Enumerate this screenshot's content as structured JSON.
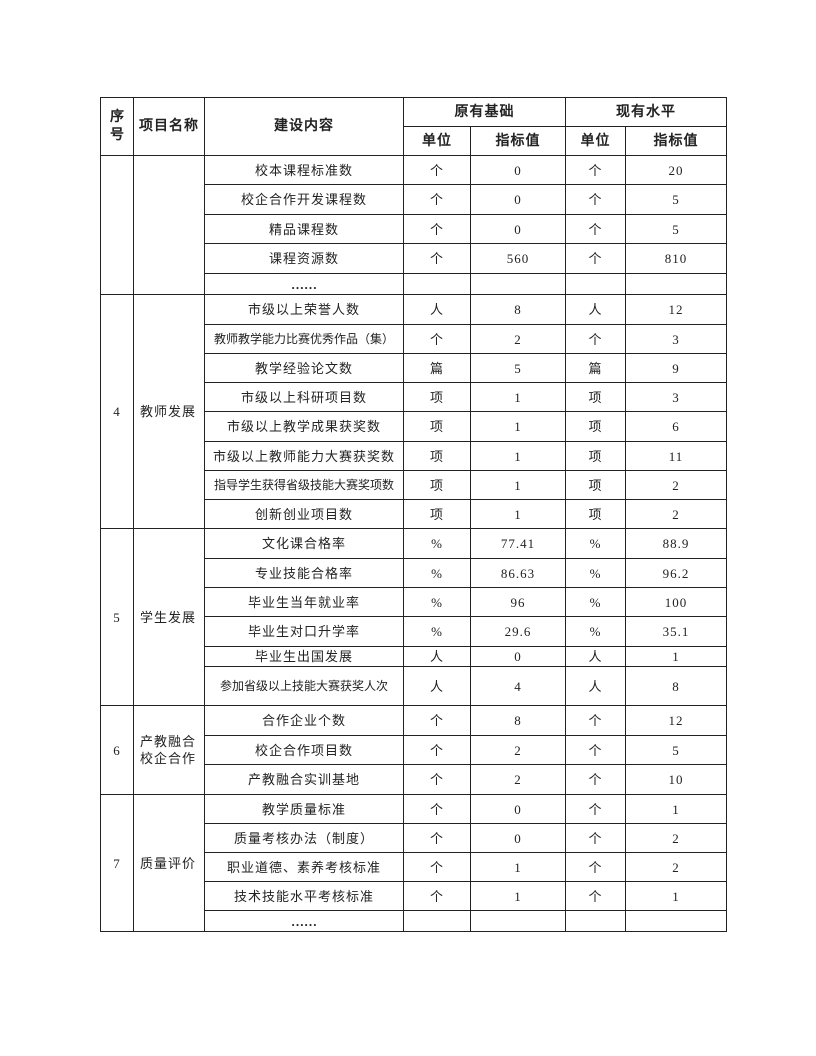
{
  "header": {
    "no": "序号",
    "name": "项目名称",
    "content": "建设内容",
    "original": "原有基础",
    "current": "现有水平",
    "unit": "单位",
    "value": "指标值"
  },
  "groups": [
    {
      "no": "",
      "name": "",
      "rows": [
        {
          "content": "校本课程标准数",
          "u0": "个",
          "v0": "0",
          "u1": "个",
          "v1": "20"
        },
        {
          "content": "校企合作开发课程数",
          "u0": "个",
          "v0": "0",
          "u1": "个",
          "v1": "5"
        },
        {
          "content": "精品课程数",
          "u0": "个",
          "v0": "0",
          "u1": "个",
          "v1": "5"
        },
        {
          "content": "课程资源数",
          "u0": "个",
          "v0": "560",
          "u1": "个",
          "v1": "810"
        },
        {
          "content": "……",
          "u0": "",
          "v0": "",
          "u1": "",
          "v1": ""
        }
      ]
    },
    {
      "no": "4",
      "name": "教师发展",
      "rows": [
        {
          "content": "市级以上荣誉人数",
          "u0": "人",
          "v0": "8",
          "u1": "人",
          "v1": "12"
        },
        {
          "content": "教师教学能力比赛优秀作品（集）",
          "u0": "个",
          "v0": "2",
          "u1": "个",
          "v1": "3"
        },
        {
          "content": "教学经验论文数",
          "u0": "篇",
          "v0": "5",
          "u1": "篇",
          "v1": "9"
        },
        {
          "content": "市级以上科研项目数",
          "u0": "项",
          "v0": "1",
          "u1": "项",
          "v1": "3"
        },
        {
          "content": "市级以上教学成果获奖数",
          "u0": "项",
          "v0": "1",
          "u1": "项",
          "v1": "6"
        },
        {
          "content": "市级以上教师能力大赛获奖数",
          "u0": "项",
          "v0": "1",
          "u1": "项",
          "v1": "11"
        },
        {
          "content": "指导学生获得省级技能大赛奖项数",
          "u0": "项",
          "v0": "1",
          "u1": "项",
          "v1": "2"
        },
        {
          "content": "创新创业项目数",
          "u0": "项",
          "v0": "1",
          "u1": "项",
          "v1": "2"
        }
      ]
    },
    {
      "no": "5",
      "name": "学生发展",
      "rows": [
        {
          "content": "文化课合格率",
          "u0": "%",
          "v0": "77.41",
          "u1": "%",
          "v1": "88.9"
        },
        {
          "content": "专业技能合格率",
          "u0": "%",
          "v0": "86.63",
          "u1": "%",
          "v1": "96.2"
        },
        {
          "content": "毕业生当年就业率",
          "u0": "%",
          "v0": "96",
          "u1": "%",
          "v1": "100"
        },
        {
          "content": "毕业生对口升学率",
          "u0": "%",
          "v0": "29.6",
          "u1": "%",
          "v1": "35.1"
        },
        {
          "content": "毕业生出国发展",
          "u0": "人",
          "v0": "0",
          "u1": "人",
          "v1": "1"
        },
        {
          "content": "参加省级以上技能大赛获奖人次",
          "u0": "人",
          "v0": "4",
          "u1": "人",
          "v1": "8"
        }
      ]
    },
    {
      "no": "6",
      "name": "产教融合校企合作",
      "rows": [
        {
          "content": "合作企业个数",
          "u0": "个",
          "v0": "8",
          "u1": "个",
          "v1": "12"
        },
        {
          "content": "校企合作项目数",
          "u0": "个",
          "v0": "2",
          "u1": "个",
          "v1": "5"
        },
        {
          "content": "产教融合实训基地",
          "u0": "个",
          "v0": "2",
          "u1": "个",
          "v1": "10"
        }
      ]
    },
    {
      "no": "7",
      "name": "质量评价",
      "rows": [
        {
          "content": "教学质量标准",
          "u0": "个",
          "v0": "0",
          "u1": "个",
          "v1": "1"
        },
        {
          "content": "质量考核办法（制度）",
          "u0": "个",
          "v0": "0",
          "u1": "个",
          "v1": "2"
        },
        {
          "content": "职业道德、素养考核标准",
          "u0": "个",
          "v0": "1",
          "u1": "个",
          "v1": "2"
        },
        {
          "content": "技术技能水平考核标准",
          "u0": "个",
          "v0": "1",
          "u1": "个",
          "v1": "1"
        },
        {
          "content": "……",
          "u0": "",
          "v0": "",
          "u1": "",
          "v1": ""
        }
      ]
    }
  ]
}
